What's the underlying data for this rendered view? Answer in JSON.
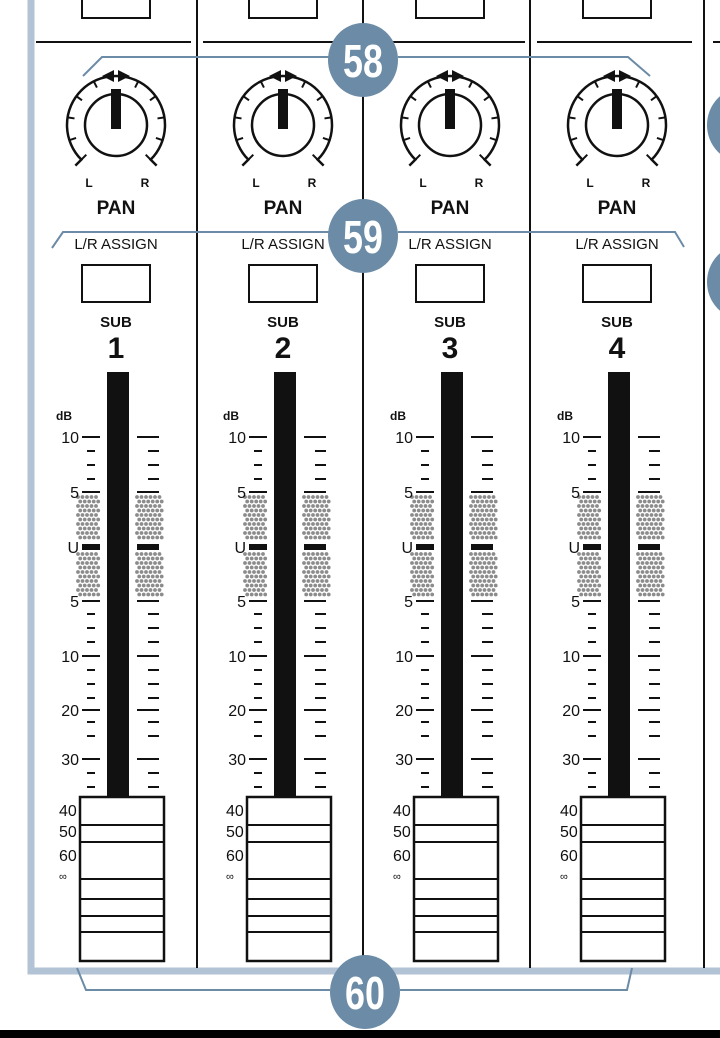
{
  "colors": {
    "panel_border": "#b1c3d4",
    "callout": "#6b8ba6",
    "ink": "#111111",
    "dots": "#8c8c8c"
  },
  "labels": {
    "pan": "PAN",
    "left": "L",
    "right": "R",
    "lr_assign": "L/R ASSIGN",
    "sub": "SUB",
    "db": "dB"
  },
  "fader_scale": [
    "10",
    "5",
    "U",
    "5",
    "10",
    "20",
    "30",
    "40",
    "50",
    "60",
    "∞"
  ],
  "channels": [
    {
      "sub_number": "1"
    },
    {
      "sub_number": "2"
    },
    {
      "sub_number": "3"
    },
    {
      "sub_number": "4"
    }
  ],
  "callouts": [
    {
      "number": "58",
      "target": "pan"
    },
    {
      "number": "59",
      "target": "lr_assign"
    },
    {
      "number": "60",
      "target": "sub_fader"
    }
  ]
}
